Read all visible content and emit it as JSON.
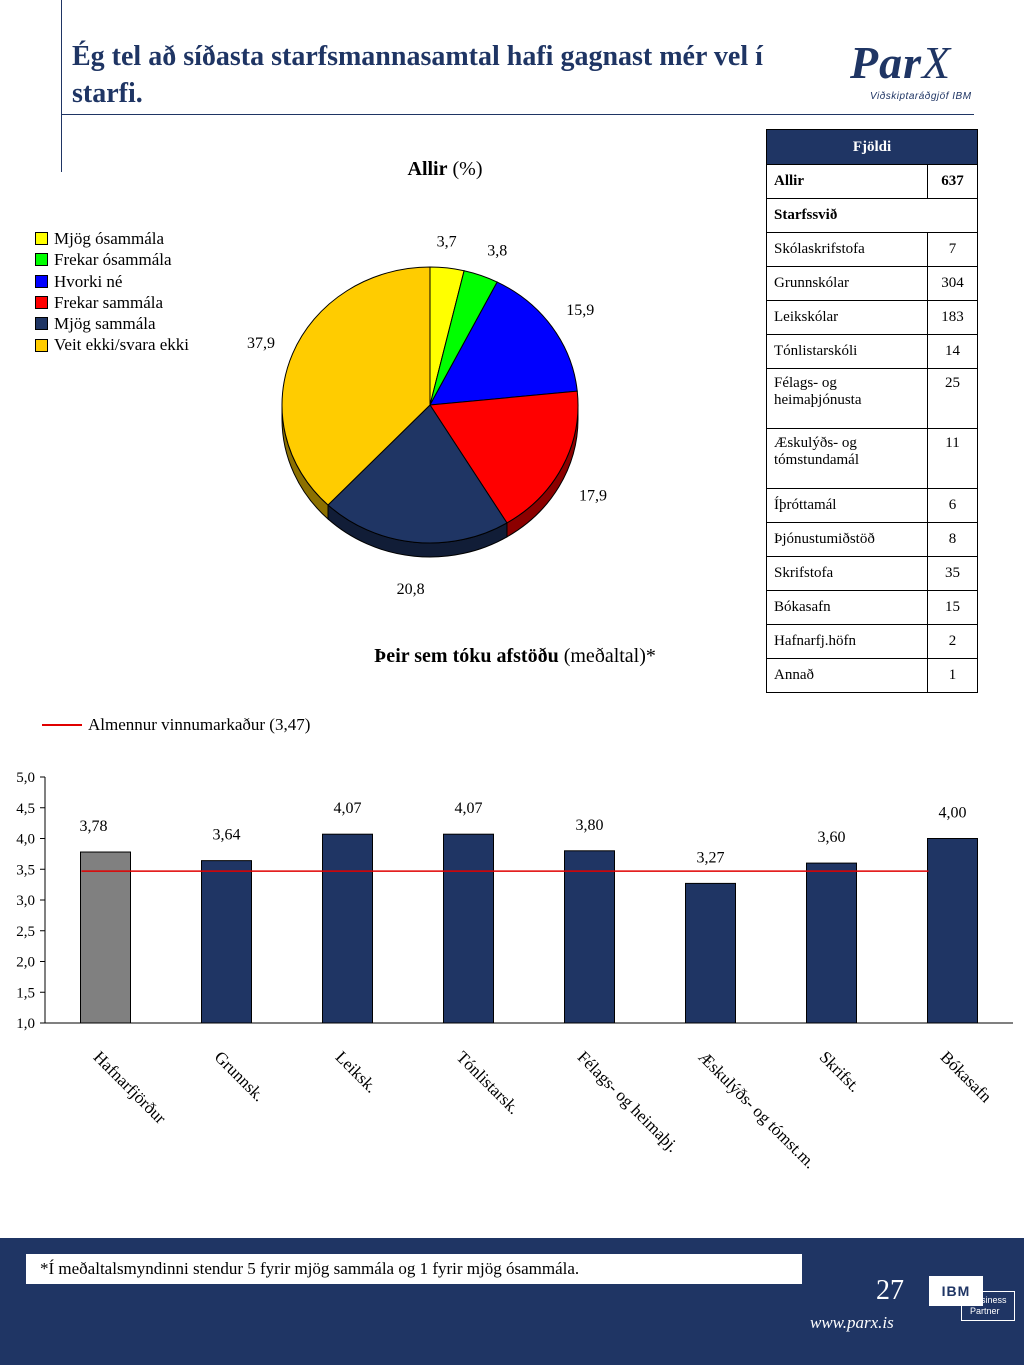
{
  "header": {
    "title": "Ég tel að síðasta starfsmannasamtal hafi gagnast mér vel í starfi.",
    "logo_brand": "ParX",
    "logo_sub": "Viðskiptaráðgjöf IBM"
  },
  "table": {
    "header": "Fjöldi",
    "rows": [
      {
        "label": "Allir",
        "value": "637",
        "bold": true
      },
      {
        "label": "Starfssvið",
        "value": "",
        "bold": true,
        "section": true
      },
      {
        "label": "Skólaskrifstofa",
        "value": "7"
      },
      {
        "label": "Grunnskólar",
        "value": "304"
      },
      {
        "label": "Leikskólar",
        "value": "183"
      },
      {
        "label": "Tónlistarskóli",
        "value": "14"
      },
      {
        "label": "Félags- og heimaþjónusta",
        "value": "25",
        "tall": true
      },
      {
        "label": "Æskulýðs- og tómstundamál",
        "value": "11",
        "tall": true
      },
      {
        "label": "Íþróttamál",
        "value": "6"
      },
      {
        "label": "Þjónustumiðstöð",
        "value": "8"
      },
      {
        "label": "Skrifstofa",
        "value": "35"
      },
      {
        "label": "Bókasafn",
        "value": "15"
      },
      {
        "label": "Hafnarfj.höfn",
        "value": "2"
      },
      {
        "label": "Annað",
        "value": "1"
      }
    ]
  },
  "chart_data": [
    {
      "type": "pie",
      "title": "Allir",
      "title_suffix": "(%)",
      "labels": [
        "Mjög ósammála",
        "Frekar ósammála",
        "Hvorki né",
        "Frekar sammála",
        "Mjög sammála",
        "Veit ekki/svara ekki"
      ],
      "values": [
        3.7,
        3.8,
        15.9,
        17.9,
        20.8,
        37.9
      ],
      "value_labels": [
        "3,7",
        "3,8",
        "15,9",
        "17,9",
        "20,8",
        "37,9"
      ],
      "colors": [
        "#ffff00",
        "#00ff00",
        "#0000ff",
        "#ff0000",
        "#1f3564",
        "#ffcc00"
      ],
      "legend_position": "left"
    },
    {
      "type": "bar",
      "title": "Þeir sem tóku afstöðu",
      "title_suffix": "(meðaltal)*",
      "categories": [
        "Hafnarfjörður",
        "Grunnsk.",
        "Leiksk.",
        "Tónlistarsk.",
        "Félags- og heimaþj.",
        "Æskulýðs- og tómst.m.",
        "Skrifst.",
        "Bókasafn"
      ],
      "values": [
        3.78,
        3.64,
        4.07,
        4.07,
        3.8,
        3.27,
        3.6,
        4.0
      ],
      "value_labels": [
        "3,78",
        "3,64",
        "4,07",
        "4,07",
        "3,80",
        "3,27",
        "3,60",
        "4,00"
      ],
      "colors": [
        "#808080",
        "#1f3564",
        "#1f3564",
        "#1f3564",
        "#1f3564",
        "#1f3564",
        "#1f3564",
        "#1f3564"
      ],
      "ylim": [
        1.0,
        5.0
      ],
      "yticks": [
        "1,0",
        "1,5",
        "2,0",
        "2,5",
        "3,0",
        "3,5",
        "4,0",
        "4,5",
        "5,0"
      ],
      "reference_line": {
        "label": "Almennur vinnumarkaður (3,47)",
        "value": 3.47,
        "color": "#e00000"
      }
    }
  ],
  "footer": {
    "note": "*Í meðaltalsmyndinni stendur 5 fyrir mjög sammála og 1 fyrir mjög ósammála.",
    "page_number": "27",
    "url": "www.parx.is",
    "ibm_tag": "IBM",
    "ibm_line1": "Business",
    "ibm_line2": "Partner"
  }
}
